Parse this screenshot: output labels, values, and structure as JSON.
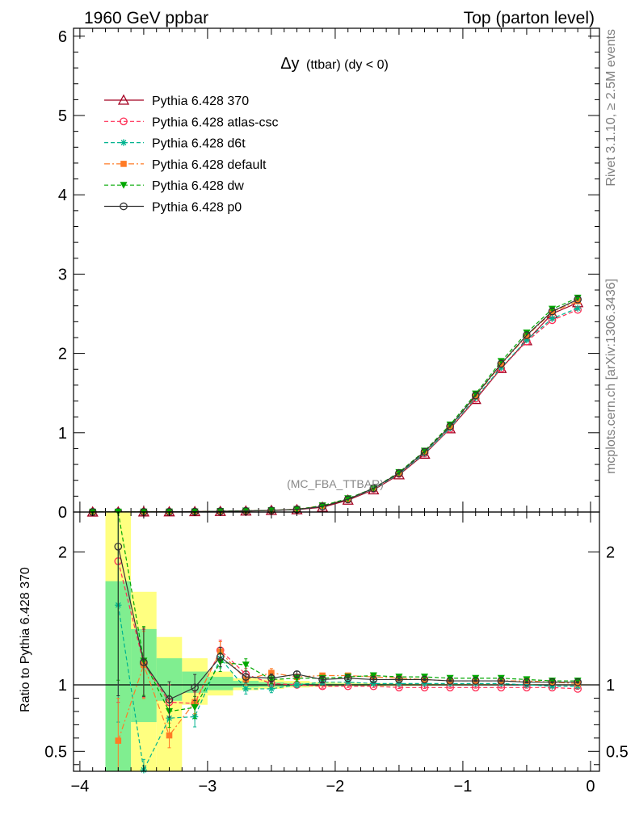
{
  "header": {
    "left": "1960 GeV ppbar",
    "right": "Top (parton level)"
  },
  "side_text": {
    "rivet": "Rivet 3.1.10, ≥ 2.5M events",
    "mcplots": "mcplots.cern.ch [arXiv:1306.3436]"
  },
  "chart_data": [
    {
      "type": "line",
      "title": "Δy (ttbar) (dy < 0)",
      "title_main": "Δy",
      "title_sub": "(ttbar) (dy < 0)",
      "watermark": "(MC_FBA_TTBAR)",
      "xlim": [
        -4.05,
        0.07
      ],
      "ylim": [
        0,
        6.1
      ],
      "yticks": [
        0,
        1,
        2,
        3,
        4,
        5,
        6
      ],
      "legend_placement": "top-left",
      "x": [
        -3.9,
        -3.7,
        -3.5,
        -3.3,
        -3.1,
        -2.9,
        -2.7,
        -2.5,
        -2.3,
        -2.1,
        -1.9,
        -1.7,
        -1.5,
        -1.3,
        -1.1,
        -0.9,
        -0.7,
        -0.5,
        -0.3,
        -0.1
      ],
      "series": [
        {
          "name": "Pythia 6.428 370",
          "color": "#a50021",
          "marker": "triangle-open",
          "dash": "solid",
          "values": [
            0.0005,
            0.001,
            0.002,
            0.003,
            0.005,
            0.008,
            0.013,
            0.02,
            0.03,
            0.06,
            0.15,
            0.28,
            0.47,
            0.73,
            1.05,
            1.42,
            1.81,
            2.16,
            2.5,
            2.64
          ]
        },
        {
          "name": "Pythia 6.428 atlas-csc",
          "color": "#ff2d55",
          "marker": "circle-open",
          "dash": "dashed",
          "values": [
            0.001,
            0.002,
            0.002,
            0.003,
            0.005,
            0.009,
            0.014,
            0.021,
            0.034,
            0.07,
            0.16,
            0.29,
            0.48,
            0.74,
            1.05,
            1.43,
            1.81,
            2.15,
            2.42,
            2.55
          ]
        },
        {
          "name": "Pythia 6.428 d6t",
          "color": "#00b38f",
          "marker": "asterisk",
          "dash": "dashed",
          "values": [
            0.0008,
            0.0016,
            0.002,
            0.002,
            0.004,
            0.009,
            0.014,
            0.02,
            0.032,
            0.07,
            0.16,
            0.29,
            0.48,
            0.74,
            1.06,
            1.44,
            1.82,
            2.17,
            2.44,
            2.57
          ]
        },
        {
          "name": "Pythia 6.428 default",
          "color": "#ff7b26",
          "marker": "square",
          "dash": "dashdot",
          "values": [
            0.0003,
            0.0006,
            0.002,
            0.002,
            0.004,
            0.009,
            0.014,
            0.022,
            0.035,
            0.08,
            0.16,
            0.3,
            0.49,
            0.76,
            1.08,
            1.46,
            1.86,
            2.22,
            2.52,
            2.66
          ]
        },
        {
          "name": "Pythia 6.428 dw",
          "color": "#00a800",
          "marker": "triangle-down",
          "dash": "dashed",
          "values": [
            0.0009,
            0.0018,
            0.002,
            0.002,
            0.004,
            0.01,
            0.015,
            0.021,
            0.034,
            0.08,
            0.17,
            0.3,
            0.5,
            0.77,
            1.1,
            1.49,
            1.9,
            2.26,
            2.56,
            2.7
          ]
        },
        {
          "name": "Pythia 6.428 p0",
          "color": "#333333",
          "marker": "circle-open",
          "dash": "solid",
          "values": [
            0.001,
            0.002,
            0.002,
            0.003,
            0.005,
            0.009,
            0.014,
            0.021,
            0.033,
            0.07,
            0.16,
            0.3,
            0.49,
            0.76,
            1.08,
            1.47,
            1.87,
            2.23,
            2.53,
            2.68
          ]
        }
      ]
    },
    {
      "type": "line",
      "ylabel": "Ratio to Pythia 6.428 370",
      "xlim": [
        -4.05,
        0.07
      ],
      "ylim": [
        0.35,
        2.3
      ],
      "yticks": [
        0.5,
        1,
        2
      ],
      "xticks": [
        -4,
        -3,
        -2,
        -1,
        0
      ],
      "xtick_labels": [
        "−4",
        "−3",
        "−2",
        "−1",
        "0"
      ],
      "reference": 1,
      "bands": {
        "edges": [
          -3.8,
          -3.6,
          -3.4,
          -3.2,
          -3.0,
          -2.8,
          -2.6,
          -2.4,
          -2.2,
          -2.0,
          -1.8,
          -1.6,
          -1.4,
          -1.2,
          -1.0,
          -0.8,
          -0.6,
          -0.4,
          -0.2,
          0.0
        ],
        "yellow": [
          [
            0.35,
            2.3
          ],
          [
            0.35,
            1.7
          ],
          [
            0.35,
            1.36
          ],
          [
            0.85,
            1.2
          ],
          [
            0.92,
            1.1
          ],
          [
            0.96,
            1.05
          ],
          [
            0.97,
            1.04
          ],
          [
            0.98,
            1.03
          ],
          [
            0.985,
            1.02
          ],
          [
            0.99,
            1.015
          ],
          [
            0.99,
            1.012
          ],
          [
            0.992,
            1.01
          ],
          [
            0.994,
            1.008
          ],
          [
            0.995,
            1.007
          ],
          [
            0.996,
            1.006
          ],
          [
            0.996,
            1.005
          ],
          [
            0.997,
            1.005
          ],
          [
            0.997,
            1.004
          ],
          [
            0.998,
            1.004
          ]
        ],
        "green": [
          [
            0.35,
            1.78
          ],
          [
            0.72,
            1.42
          ],
          [
            0.88,
            1.2
          ],
          [
            0.94,
            1.1
          ],
          [
            0.96,
            1.06
          ],
          [
            0.98,
            1.03
          ],
          [
            0.985,
            1.02
          ],
          [
            0.99,
            1.014
          ],
          [
            0.993,
            1.01
          ],
          [
            0.995,
            1.008
          ],
          [
            0.996,
            1.006
          ],
          [
            0.997,
            1.005
          ],
          [
            0.997,
            1.004
          ],
          [
            0.998,
            1.004
          ],
          [
            0.998,
            1.003
          ],
          [
            0.998,
            1.003
          ],
          [
            0.999,
            1.003
          ],
          [
            0.999,
            1.002
          ],
          [
            0.999,
            1.002
          ]
        ]
      },
      "x": [
        -3.7,
        -3.5,
        -3.3,
        -3.1,
        -2.9,
        -2.7,
        -2.5,
        -2.3,
        -2.1,
        -1.9,
        -1.7,
        -1.5,
        -1.3,
        -1.1,
        -0.9,
        -0.7,
        -0.5,
        -0.3,
        -0.1
      ],
      "series": [
        {
          "name": "Pythia 6.428 atlas-csc",
          "color": "#ff2d55",
          "marker": "circle-open",
          "dash": "dashed",
          "values": [
            1.93,
            1.16,
            0.87,
            0.86,
            1.26,
            1.08,
            1.01,
            1.0,
            0.99,
            0.99,
            0.99,
            0.98,
            0.98,
            0.98,
            0.98,
            0.98,
            0.98,
            0.98,
            0.97
          ]
        },
        {
          "name": "Pythia 6.428 d6t",
          "color": "#00b38f",
          "marker": "asterisk",
          "dash": "dashed",
          "values": [
            1.6,
            0.36,
            0.75,
            0.76,
            1.2,
            0.97,
            0.97,
            1.0,
            1.02,
            1.02,
            1.01,
            1.01,
            1.01,
            1.01,
            1.01,
            1.01,
            1.0,
            0.99,
            0.99
          ]
        },
        {
          "name": "Pythia 6.428 default",
          "color": "#ff7b26",
          "marker": "square",
          "dash": "dashdot",
          "values": [
            0.58,
            1.15,
            0.62,
            0.87,
            1.25,
            1.04,
            1.09,
            1.06,
            1.07,
            1.07,
            1.06,
            1.05,
            1.04,
            1.03,
            1.03,
            1.03,
            1.03,
            1.02,
            1.01
          ]
        },
        {
          "name": "Pythia 6.428 dw",
          "color": "#00a800",
          "marker": "triangle-down",
          "dash": "dashed",
          "values": [
            2.3,
            1.18,
            0.8,
            0.83,
            1.17,
            1.15,
            1.04,
            1.05,
            1.05,
            1.06,
            1.07,
            1.06,
            1.06,
            1.05,
            1.05,
            1.05,
            1.04,
            1.03,
            1.03
          ]
        },
        {
          "name": "Pythia 6.428 p0",
          "color": "#333333",
          "marker": "circle-open",
          "dash": "solid",
          "values": [
            2.04,
            1.17,
            0.89,
            0.98,
            1.21,
            1.06,
            1.05,
            1.08,
            1.04,
            1.05,
            1.04,
            1.04,
            1.04,
            1.03,
            1.03,
            1.03,
            1.02,
            1.02,
            1.02
          ]
        }
      ],
      "errors": [
        0.55,
        0.22,
        0.15,
        0.1,
        0.06,
        0.04,
        0.03,
        0.02,
        0.015,
        0.01,
        0.01,
        0.008,
        0.007,
        0.006,
        0.005,
        0.005,
        0.005,
        0.004,
        0.004
      ]
    }
  ]
}
